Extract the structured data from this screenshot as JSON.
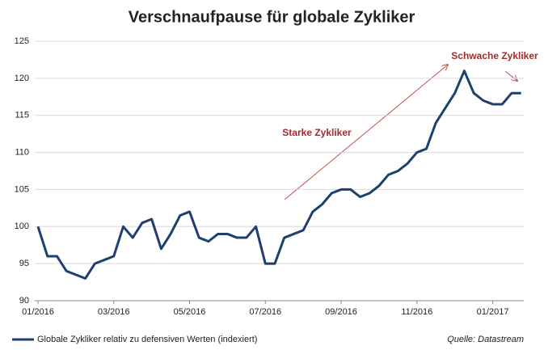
{
  "chart_data": {
    "type": "line",
    "title": "Verschnaufpause für globale Zykliker",
    "categories": [
      "01/2016",
      null,
      null,
      null,
      null,
      null,
      null,
      null,
      "03/2016",
      null,
      null,
      null,
      null,
      null,
      null,
      null,
      "05/2016",
      null,
      null,
      null,
      null,
      null,
      null,
      null,
      "07/2016",
      null,
      null,
      null,
      null,
      null,
      null,
      null,
      "09/2016",
      null,
      null,
      null,
      null,
      null,
      null,
      null,
      "11/2016",
      null,
      null,
      null,
      null,
      null,
      null,
      null,
      "01/2017",
      null,
      null,
      null
    ],
    "series": [
      {
        "name": "Globale Zykliker relativ zu defensiven Werten (indexiert)",
        "color": "#1f3f6e",
        "values": [
          100,
          96,
          96,
          94,
          93.5,
          93,
          95,
          95.5,
          96,
          100,
          98.5,
          100.5,
          101,
          97,
          99,
          101.5,
          102,
          98.5,
          98,
          99,
          99,
          98.5,
          98.5,
          100,
          95,
          95,
          98.5,
          99,
          99.5,
          102,
          103,
          104.5,
          105,
          105,
          104,
          104.5,
          105.5,
          107,
          107.5,
          108.5,
          110,
          110.5,
          114,
          116,
          118,
          121,
          118,
          117,
          116.5,
          116.5,
          118,
          118
        ]
      }
    ],
    "ylim": [
      90,
      125
    ],
    "yticks": [
      90,
      95,
      100,
      105,
      110,
      115,
      120,
      125
    ],
    "grid": true,
    "annotations": [
      "Starke Zykliker",
      "Schwache Zykliker"
    ],
    "source": "Quelle: Datastream"
  }
}
